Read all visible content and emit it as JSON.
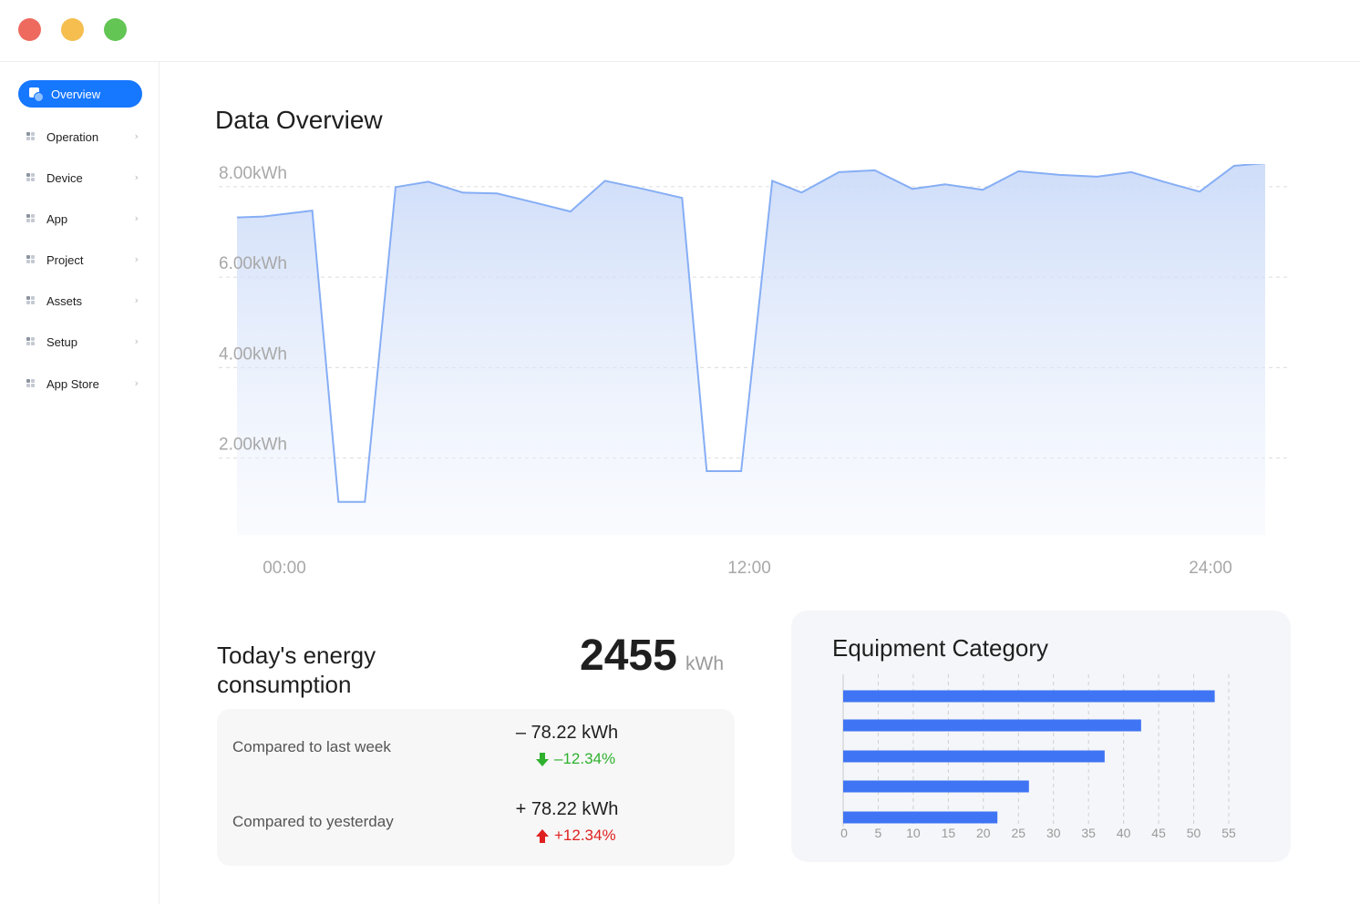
{
  "window": {
    "controls": [
      {
        "name": "close",
        "color": "#ee6a5f"
      },
      {
        "name": "minimize",
        "color": "#f5be4f"
      },
      {
        "name": "maximize",
        "color": "#62c554"
      }
    ]
  },
  "sidebar": {
    "items": [
      {
        "label": "Overview",
        "active": true
      },
      {
        "label": "Operation"
      },
      {
        "label": "Device"
      },
      {
        "label": "App"
      },
      {
        "label": "Project"
      },
      {
        "label": "Assets"
      },
      {
        "label": "Setup"
      },
      {
        "label": "App Store"
      }
    ]
  },
  "main": {
    "title": "Data Overview"
  },
  "chart_data": [
    {
      "type": "area",
      "y_tick_labels": [
        "8.00kWh",
        "6.00kWh",
        "4.00kWh",
        "2.00kWh"
      ],
      "y_ticks": [
        8,
        6,
        4,
        2
      ],
      "ylim": [
        0.3,
        8.5
      ],
      "x_tick_labels": [
        "00:00",
        "12:00",
        "24:00"
      ],
      "grid": true,
      "color": "#86aef5",
      "points": [
        {
          "x": 0.0,
          "y": 7.32
        },
        {
          "x": 0.72,
          "y": 7.34
        },
        {
          "x": 2.08,
          "y": 7.47
        },
        {
          "x": 2.8,
          "y": 1.03
        },
        {
          "x": 3.53,
          "y": 1.03
        },
        {
          "x": 4.38,
          "y": 7.99
        },
        {
          "x": 5.28,
          "y": 8.11
        },
        {
          "x": 6.23,
          "y": 7.87
        },
        {
          "x": 7.18,
          "y": 7.85
        },
        {
          "x": 8.26,
          "y": 7.64
        },
        {
          "x": 9.21,
          "y": 7.45
        },
        {
          "x": 10.16,
          "y": 8.13
        },
        {
          "x": 11.16,
          "y": 7.96
        },
        {
          "x": 12.29,
          "y": 7.75
        },
        {
          "x": 12.97,
          "y": 1.71
        },
        {
          "x": 13.92,
          "y": 1.71
        },
        {
          "x": 14.78,
          "y": 8.13
        },
        {
          "x": 15.59,
          "y": 7.87
        },
        {
          "x": 16.62,
          "y": 8.32
        },
        {
          "x": 17.61,
          "y": 8.36
        },
        {
          "x": 18.65,
          "y": 7.95
        },
        {
          "x": 19.55,
          "y": 8.05
        },
        {
          "x": 20.59,
          "y": 7.93
        },
        {
          "x": 21.58,
          "y": 8.34
        },
        {
          "x": 22.71,
          "y": 8.26
        },
        {
          "x": 23.75,
          "y": 8.22
        },
        {
          "x": 24.69,
          "y": 8.32
        },
        {
          "x": 25.59,
          "y": 8.11
        },
        {
          "x": 26.58,
          "y": 7.89
        },
        {
          "x": 27.53,
          "y": 8.46
        },
        {
          "x": 28.39,
          "y": 8.52
        }
      ]
    },
    {
      "type": "bar",
      "orientation": "horizontal",
      "title": "Equipment Category",
      "x_ticks": [
        0,
        5,
        10,
        15,
        20,
        25,
        30,
        35,
        40,
        45,
        50,
        55
      ],
      "xlim": [
        0,
        55
      ],
      "grid": true,
      "color": "#3f74f4",
      "values": [
        53,
        42.5,
        37.3,
        26.5,
        22
      ]
    }
  ],
  "energy": {
    "title": "Today's energy consumption",
    "value": "2455",
    "unit": "kWh",
    "comparisons": [
      {
        "label": "Compared to last week",
        "value": "– 78.22 kWh",
        "percent": "–12.34%",
        "direction": "down",
        "color": "#2fb12f"
      },
      {
        "label": "Compared to yesterday",
        "value": "+ 78.22 kWh",
        "percent": "+12.34%",
        "direction": "up",
        "color": "#e02020"
      }
    ]
  },
  "equipment": {
    "title": "Equipment Category"
  }
}
